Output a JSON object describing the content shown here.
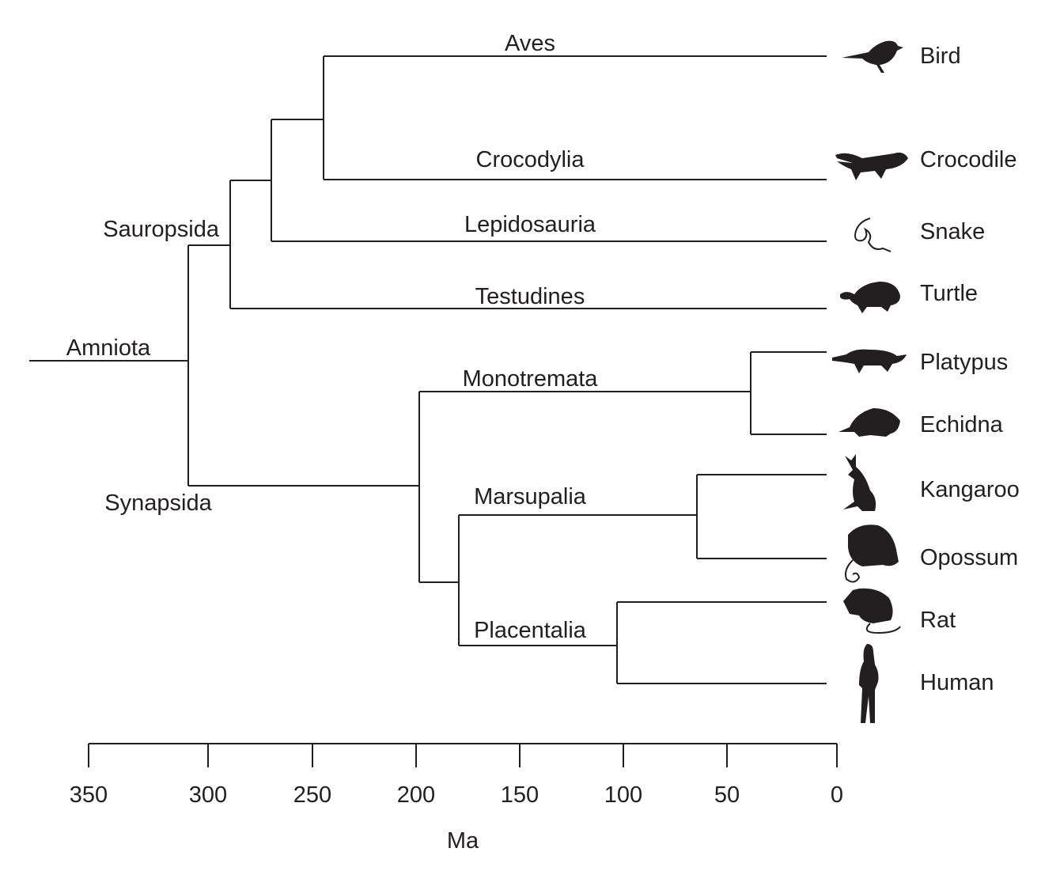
{
  "clades": {
    "amniota": "Amniota",
    "sauropsida": "Sauropsida",
    "synapsida": "Synapsida",
    "aves": "Aves",
    "crocodylia": "Crocodylia",
    "lepidosauria": "Lepidosauria",
    "testudines": "Testudines",
    "monotremata": "Monotremata",
    "marsupalia": "Marsupalia",
    "placentalia": "Placentalia"
  },
  "taxa": [
    {
      "name": "Bird",
      "icon": "bird-icon"
    },
    {
      "name": "Crocodile",
      "icon": "crocodile-icon"
    },
    {
      "name": "Snake",
      "icon": "snake-icon"
    },
    {
      "name": "Turtle",
      "icon": "turtle-icon"
    },
    {
      "name": "Platypus",
      "icon": "platypus-icon"
    },
    {
      "name": "Echidna",
      "icon": "echidna-icon"
    },
    {
      "name": "Kangaroo",
      "icon": "kangaroo-icon"
    },
    {
      "name": "Opossum",
      "icon": "opossum-icon"
    },
    {
      "name": "Rat",
      "icon": "rat-icon"
    },
    {
      "name": "Human",
      "icon": "human-icon"
    }
  ],
  "axis": {
    "label": "Ma",
    "ticks": [
      "350",
      "300",
      "250",
      "200",
      "150",
      "100",
      "50",
      "0"
    ]
  },
  "colors": {
    "ink": "#231f20"
  }
}
